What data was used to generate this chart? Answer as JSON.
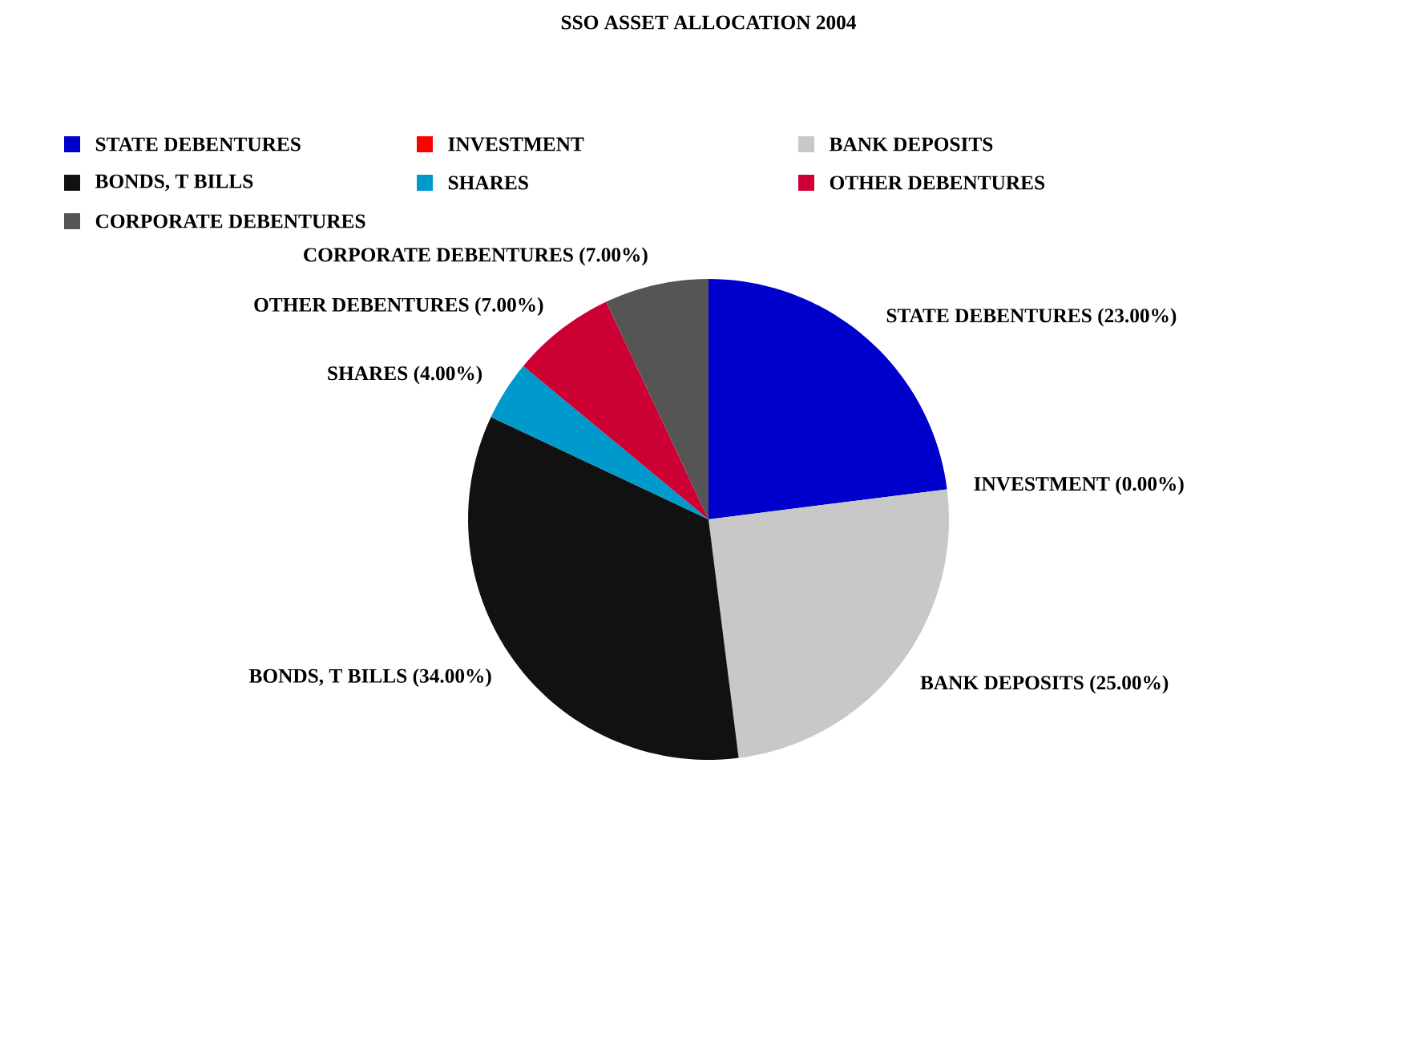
{
  "chart_data": {
    "type": "pie",
    "title": "SSO ASSET ALLOCATION 2004",
    "categories": [
      "STATE DEBENTURES",
      "INVESTMENT",
      "BANK DEPOSITS",
      "BONDS, T BILLS",
      "SHARES",
      "OTHER DEBENTURES",
      "CORPORATE DEBENTURES"
    ],
    "values": [
      23,
      0,
      25,
      34,
      4,
      7,
      7
    ],
    "colors": [
      "#0000cc",
      "#ff0000",
      "#c8c8c8",
      "#111111",
      "#0099cc",
      "#cc0033",
      "#555555"
    ],
    "value_labels": [
      "(23.00%)",
      "(0.00%)",
      "(25.00%)",
      "(34.00%)",
      "(4.00%)",
      "(7.00%)",
      "(7.00%)"
    ],
    "legend": "top"
  }
}
